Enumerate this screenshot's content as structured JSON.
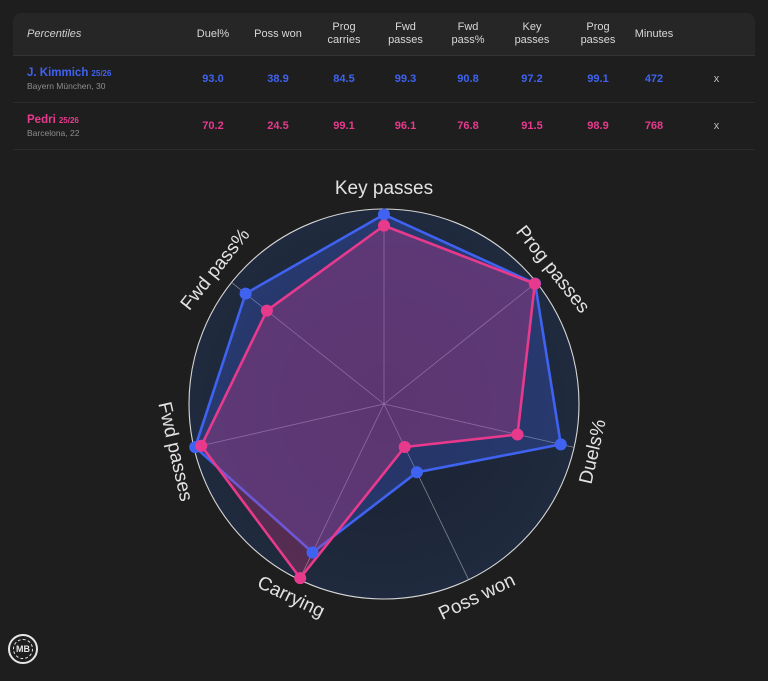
{
  "table": {
    "title": "Percentiles",
    "columns": [
      "Duel%",
      "Poss won",
      "Prog\ncarries",
      "Fwd\npasses",
      "Fwd\npass%",
      "Key\npasses",
      "Prog\npasses",
      "Minutes"
    ],
    "remove_label": "x"
  },
  "players": [
    {
      "name": "J. Kimmich",
      "season": "25/26",
      "info": "Bayern München, 30",
      "color": "#3f63f0",
      "values": [
        "93.0",
        "38.9",
        "84.5",
        "99.3",
        "90.8",
        "97.2",
        "99.1",
        "472"
      ]
    },
    {
      "name": "Pedri",
      "season": "25/26",
      "info": "Barcelona, 22",
      "color": "#e83a8d",
      "values": [
        "70.2",
        "24.5",
        "99.1",
        "96.1",
        "76.8",
        "91.5",
        "98.9",
        "768"
      ]
    }
  ],
  "chart_data": {
    "type": "radar",
    "axes": [
      "Key passes",
      "Prog passes",
      "Duels%",
      "Poss won",
      "Carrying",
      "Fwd passes",
      "Fwd pass%"
    ],
    "range": [
      0,
      100
    ],
    "series": [
      {
        "name": "J. Kimmich",
        "color": "#3f63f0",
        "values": [
          97.2,
          99.1,
          93.0,
          38.9,
          84.5,
          99.3,
          90.8
        ]
      },
      {
        "name": "Pedri",
        "color": "#e83a8d",
        "values": [
          91.5,
          98.9,
          70.2,
          24.5,
          99.1,
          96.1,
          76.8
        ]
      }
    ]
  },
  "logo": {
    "text": "MB"
  }
}
